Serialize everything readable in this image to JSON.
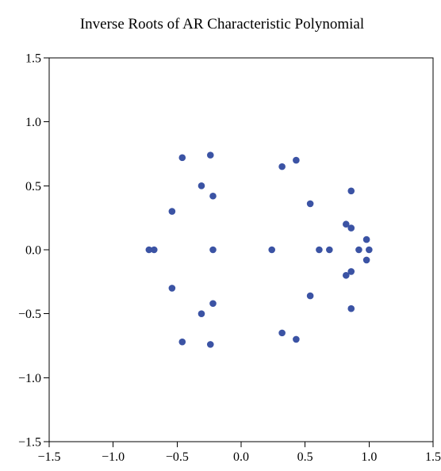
{
  "chart_data": {
    "type": "scatter",
    "title": "Inverse Roots of AR Characteristic Polynomial",
    "xlabel": "",
    "ylabel": "",
    "xlim": [
      -1.5,
      1.5
    ],
    "ylim": [
      -1.5,
      1.5
    ],
    "x_ticks": [
      "−1.5",
      "−1.0",
      "−0.5",
      "0.0",
      "0.5",
      "1.0",
      "1.5"
    ],
    "y_ticks": [
      "1.5",
      "1.0",
      "0.5",
      "0.0",
      "−0.5",
      "−1.0",
      "−1.5"
    ],
    "grid": false,
    "legend": "none",
    "point_color": "#3b53a4",
    "points": [
      {
        "x": -0.72,
        "y": 0.0
      },
      {
        "x": -0.68,
        "y": 0.0
      },
      {
        "x": -0.54,
        "y": 0.3
      },
      {
        "x": -0.54,
        "y": -0.3
      },
      {
        "x": -0.46,
        "y": 0.72
      },
      {
        "x": -0.46,
        "y": -0.72
      },
      {
        "x": -0.31,
        "y": 0.5
      },
      {
        "x": -0.31,
        "y": -0.5
      },
      {
        "x": -0.24,
        "y": 0.74
      },
      {
        "x": -0.24,
        "y": -0.74
      },
      {
        "x": -0.22,
        "y": 0.42
      },
      {
        "x": -0.22,
        "y": -0.42
      },
      {
        "x": -0.22,
        "y": 0.0
      },
      {
        "x": 0.24,
        "y": 0.0
      },
      {
        "x": 0.32,
        "y": 0.65
      },
      {
        "x": 0.32,
        "y": -0.65
      },
      {
        "x": 0.43,
        "y": 0.7
      },
      {
        "x": 0.43,
        "y": -0.7
      },
      {
        "x": 0.54,
        "y": 0.36
      },
      {
        "x": 0.54,
        "y": -0.36
      },
      {
        "x": 0.61,
        "y": 0.0
      },
      {
        "x": 0.69,
        "y": 0.0
      },
      {
        "x": 0.82,
        "y": 0.2
      },
      {
        "x": 0.82,
        "y": -0.2
      },
      {
        "x": 0.86,
        "y": 0.17
      },
      {
        "x": 0.86,
        "y": -0.17
      },
      {
        "x": 0.86,
        "y": 0.46
      },
      {
        "x": 0.86,
        "y": -0.46
      },
      {
        "x": 0.92,
        "y": 0.0
      },
      {
        "x": 0.98,
        "y": 0.08
      },
      {
        "x": 0.98,
        "y": -0.08
      },
      {
        "x": 1.0,
        "y": 0.0
      }
    ]
  }
}
